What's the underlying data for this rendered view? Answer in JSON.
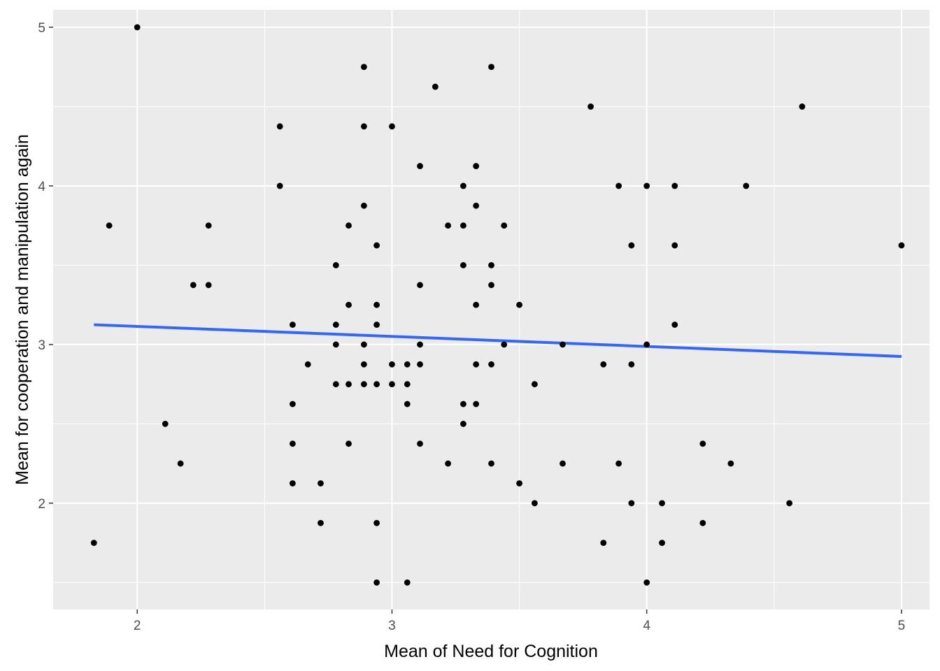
{
  "chart_data": {
    "type": "scatter",
    "title": "",
    "xlabel": "Mean of Need for Cognition",
    "ylabel": "Mean for cooperation and manipulation again",
    "xlim": [
      1.67,
      5.11
    ],
    "ylim": [
      1.33,
      5.11
    ],
    "x_ticks": [
      2,
      3,
      4,
      5
    ],
    "y_ticks": [
      2,
      3,
      4,
      5
    ],
    "x_tick_labels": [
      "2",
      "3",
      "4",
      "5"
    ],
    "y_tick_labels": [
      "2",
      "3",
      "4",
      "5"
    ],
    "grid": true,
    "panel_background": "#EBEBEB",
    "point_color": "#000000",
    "points": [
      [
        1.83,
        1.75
      ],
      [
        1.89,
        3.75
      ],
      [
        2.0,
        5.0
      ],
      [
        2.11,
        2.5
      ],
      [
        2.17,
        2.25
      ],
      [
        2.22,
        3.375
      ],
      [
        2.28,
        3.375
      ],
      [
        2.28,
        3.75
      ],
      [
        2.56,
        4.375
      ],
      [
        2.56,
        4.0
      ],
      [
        2.61,
        3.125
      ],
      [
        2.61,
        2.625
      ],
      [
        2.61,
        2.375
      ],
      [
        2.61,
        2.125
      ],
      [
        2.67,
        2.875
      ],
      [
        2.72,
        2.125
      ],
      [
        2.72,
        1.875
      ],
      [
        2.78,
        3.5
      ],
      [
        2.78,
        3.125
      ],
      [
        2.78,
        3.0
      ],
      [
        2.78,
        2.75
      ],
      [
        2.83,
        3.75
      ],
      [
        2.83,
        3.25
      ],
      [
        2.83,
        2.75
      ],
      [
        2.83,
        2.375
      ],
      [
        2.89,
        4.75
      ],
      [
        2.89,
        4.375
      ],
      [
        2.89,
        3.875
      ],
      [
        2.89,
        3.0
      ],
      [
        2.89,
        2.875
      ],
      [
        2.89,
        2.75
      ],
      [
        2.94,
        3.625
      ],
      [
        2.94,
        3.25
      ],
      [
        2.94,
        3.125
      ],
      [
        2.94,
        2.75
      ],
      [
        2.94,
        1.875
      ],
      [
        2.94,
        1.5
      ],
      [
        3.0,
        4.375
      ],
      [
        3.0,
        2.875
      ],
      [
        3.0,
        2.75
      ],
      [
        3.06,
        2.875
      ],
      [
        3.06,
        2.75
      ],
      [
        3.06,
        2.625
      ],
      [
        3.06,
        1.5
      ],
      [
        3.11,
        4.125
      ],
      [
        3.11,
        3.375
      ],
      [
        3.11,
        3.0
      ],
      [
        3.11,
        2.875
      ],
      [
        3.11,
        2.375
      ],
      [
        3.17,
        4.625
      ],
      [
        3.22,
        3.75
      ],
      [
        3.22,
        2.25
      ],
      [
        3.28,
        4.0
      ],
      [
        3.28,
        3.75
      ],
      [
        3.28,
        3.5
      ],
      [
        3.28,
        2.625
      ],
      [
        3.28,
        2.5
      ],
      [
        3.33,
        4.125
      ],
      [
        3.33,
        3.875
      ],
      [
        3.33,
        3.25
      ],
      [
        3.33,
        2.875
      ],
      [
        3.33,
        2.625
      ],
      [
        3.39,
        4.75
      ],
      [
        3.39,
        3.5
      ],
      [
        3.39,
        3.375
      ],
      [
        3.39,
        2.875
      ],
      [
        3.39,
        2.25
      ],
      [
        3.44,
        3.75
      ],
      [
        3.44,
        3.0
      ],
      [
        3.5,
        3.25
      ],
      [
        3.5,
        2.125
      ],
      [
        3.56,
        2.75
      ],
      [
        3.56,
        2.0
      ],
      [
        3.67,
        3.0
      ],
      [
        3.67,
        2.25
      ],
      [
        3.78,
        4.5
      ],
      [
        3.83,
        2.875
      ],
      [
        3.83,
        1.75
      ],
      [
        3.89,
        4.0
      ],
      [
        3.89,
        2.25
      ],
      [
        3.94,
        3.625
      ],
      [
        3.94,
        2.875
      ],
      [
        3.94,
        2.0
      ],
      [
        4.0,
        4.0
      ],
      [
        4.0,
        3.0
      ],
      [
        4.0,
        1.5
      ],
      [
        4.06,
        2.0
      ],
      [
        4.06,
        1.75
      ],
      [
        4.11,
        4.0
      ],
      [
        4.11,
        3.625
      ],
      [
        4.11,
        3.125
      ],
      [
        4.22,
        2.375
      ],
      [
        4.22,
        1.875
      ],
      [
        4.33,
        2.25
      ],
      [
        4.39,
        4.0
      ],
      [
        4.56,
        2.0
      ],
      [
        4.61,
        4.5
      ],
      [
        5.0,
        3.625
      ]
    ],
    "trend_line": {
      "type": "linear",
      "color": "#3366FF",
      "x": [
        1.83,
        5.0
      ],
      "y": [
        3.125,
        2.925
      ]
    }
  }
}
